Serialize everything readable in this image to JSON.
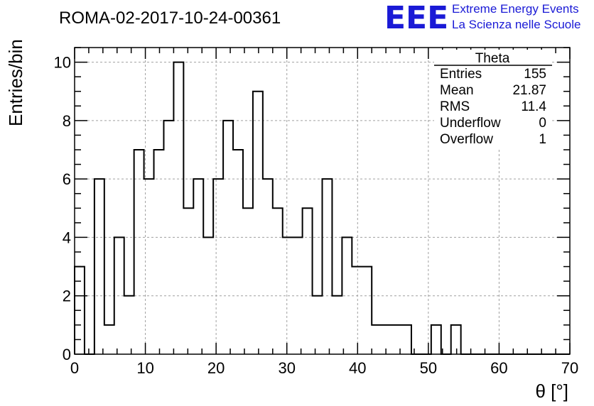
{
  "chart_data": {
    "type": "bar",
    "title": "ROMA-02-2017-10-24-00361",
    "xlabel": "θ [°]",
    "ylabel": "Entries/bin",
    "xlim": [
      0,
      70
    ],
    "ylim": [
      0,
      10.5
    ],
    "x_ticks": [
      "0",
      "10",
      "20",
      "30",
      "40",
      "50",
      "60",
      "70"
    ],
    "y_ticks": [
      "0",
      "2",
      "4",
      "6",
      "8",
      "10"
    ],
    "grid": true,
    "bin_width": 1.4,
    "bin_edges_start": 0,
    "values": [
      3,
      0,
      6,
      1,
      4,
      2,
      7,
      6,
      7,
      8,
      10,
      5,
      6,
      4,
      6,
      8,
      7,
      5,
      9,
      6,
      5,
      4,
      4,
      5,
      2,
      6,
      2,
      4,
      3,
      3,
      1,
      1,
      1,
      1,
      0,
      0,
      1,
      0,
      1,
      0,
      0,
      0,
      0,
      0,
      0,
      0,
      0,
      0,
      0,
      0
    ],
    "stats_box": {
      "name": "Theta",
      "rows": [
        {
          "label": "Entries",
          "value": "155"
        },
        {
          "label": "Mean",
          "value": "21.87"
        },
        {
          "label": "RMS",
          "value": "11.4"
        },
        {
          "label": "Underflow",
          "value": "0"
        },
        {
          "label": "Overflow",
          "value": "1"
        }
      ]
    },
    "line_color": "#000000",
    "grid_color": "#a0a0a0"
  },
  "logo": {
    "mark": "EEE",
    "line1": "Extreme Energy Events",
    "line2": "La Scienza nelle Scuole",
    "color": "#1a1ad6"
  }
}
